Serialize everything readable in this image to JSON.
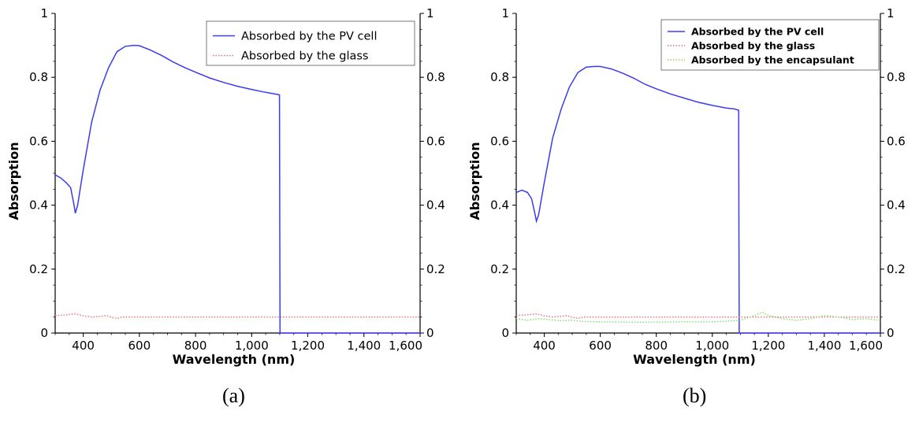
{
  "figure": {
    "captions": [
      "(a)",
      "(b)"
    ]
  },
  "chart_data": [
    {
      "type": "line",
      "panel": "(a)",
      "xlabel": "Wavelength (nm)",
      "ylabel": "Absorption",
      "xlim": [
        300,
        1600
      ],
      "ylim": [
        0,
        1
      ],
      "x_ticks": [
        400,
        600,
        800,
        1000,
        1200,
        1400,
        1600
      ],
      "x_tick_labels": [
        "400",
        "600",
        "800",
        "1,000",
        "1,200",
        "1,400",
        "1,600"
      ],
      "y_ticks": [
        0,
        0.2,
        0.4,
        0.6,
        0.8,
        1
      ],
      "y_tick_labels": [
        "0",
        "0.2",
        "0.4",
        "0.6",
        "0.8",
        "1"
      ],
      "right_axis": true,
      "grid": false,
      "legend_position": "top-right",
      "series": [
        {
          "name": "Absorbed by the PV cell",
          "color": "#3b3bf0",
          "style": "solid",
          "x": [
            300,
            320,
            340,
            355,
            365,
            372,
            380,
            400,
            430,
            460,
            490,
            520,
            550,
            580,
            600,
            640,
            680,
            720,
            760,
            800,
            850,
            900,
            950,
            1000,
            1050,
            1095,
            1099,
            1100,
            1101,
            1120,
            1200,
            1400,
            1600
          ],
          "y": [
            0.495,
            0.485,
            0.47,
            0.455,
            0.41,
            0.375,
            0.4,
            0.51,
            0.66,
            0.76,
            0.83,
            0.88,
            0.897,
            0.9,
            0.899,
            0.885,
            0.868,
            0.848,
            0.831,
            0.816,
            0.798,
            0.784,
            0.772,
            0.762,
            0.753,
            0.746,
            0.745,
            0.4,
            0.0,
            0.0,
            0.0,
            0.0,
            0.0
          ]
        },
        {
          "name": "Absorbed by the glass",
          "color": "#e0707a",
          "style": "dotted",
          "x": [
            300,
            340,
            370,
            400,
            430,
            460,
            480,
            500,
            520,
            540,
            600,
            700,
            800,
            900,
            1000,
            1100,
            1200,
            1400,
            1600
          ],
          "y": [
            0.055,
            0.057,
            0.06,
            0.054,
            0.05,
            0.052,
            0.055,
            0.049,
            0.046,
            0.05,
            0.05,
            0.05,
            0.05,
            0.05,
            0.05,
            0.05,
            0.05,
            0.05,
            0.05
          ]
        }
      ]
    },
    {
      "type": "line",
      "panel": "(b)",
      "xlabel": "Wavelength (nm)",
      "ylabel": "Absorption",
      "xlim": [
        300,
        1600
      ],
      "ylim": [
        0,
        1
      ],
      "x_ticks": [
        400,
        600,
        800,
        1000,
        1200,
        1400,
        1600
      ],
      "x_tick_labels": [
        "400",
        "600",
        "800",
        "1,000",
        "1,200",
        "1,400",
        "1,600"
      ],
      "y_ticks": [
        0,
        0.2,
        0.4,
        0.6,
        0.8,
        1
      ],
      "y_tick_labels": [
        "0",
        "0.2",
        "0.4",
        "0.6",
        "0.8",
        "1"
      ],
      "right_axis": true,
      "grid": false,
      "legend_position": "top-right",
      "series": [
        {
          "name": "Absorbed by the PV cell",
          "color": "#3b3bf0",
          "style": "solid",
          "x": [
            300,
            320,
            340,
            355,
            365,
            372,
            380,
            400,
            430,
            460,
            490,
            520,
            550,
            580,
            600,
            640,
            680,
            720,
            760,
            800,
            850,
            900,
            950,
            1000,
            1050,
            1080,
            1094,
            1095,
            1096,
            1120,
            1200,
            1400,
            1600
          ],
          "y": [
            0.44,
            0.447,
            0.44,
            0.42,
            0.38,
            0.35,
            0.37,
            0.47,
            0.61,
            0.7,
            0.77,
            0.815,
            0.832,
            0.834,
            0.834,
            0.826,
            0.813,
            0.797,
            0.778,
            0.764,
            0.748,
            0.735,
            0.722,
            0.712,
            0.704,
            0.701,
            0.697,
            0.35,
            0.0,
            0.0,
            0.0,
            0.0,
            0.0
          ]
        },
        {
          "name": "Absorbed by the glass",
          "color": "#e0707a",
          "style": "dotted",
          "x": [
            300,
            340,
            370,
            400,
            430,
            460,
            480,
            500,
            520,
            540,
            600,
            700,
            800,
            900,
            1000,
            1100,
            1200,
            1400,
            1600
          ],
          "y": [
            0.055,
            0.057,
            0.06,
            0.054,
            0.05,
            0.052,
            0.055,
            0.049,
            0.046,
            0.05,
            0.05,
            0.05,
            0.05,
            0.05,
            0.05,
            0.05,
            0.05,
            0.05,
            0.05
          ]
        },
        {
          "name": "Absorbed by the encapsulant",
          "color": "#8fd36a",
          "style": "dotted",
          "x": [
            300,
            340,
            380,
            420,
            460,
            500,
            540,
            600,
            700,
            800,
            900,
            1000,
            1050,
            1100,
            1150,
            1180,
            1200,
            1250,
            1300,
            1350,
            1400,
            1450,
            1500,
            1550,
            1600
          ],
          "y": [
            0.045,
            0.04,
            0.045,
            0.042,
            0.038,
            0.04,
            0.036,
            0.035,
            0.034,
            0.034,
            0.035,
            0.035,
            0.037,
            0.04,
            0.055,
            0.065,
            0.055,
            0.045,
            0.04,
            0.045,
            0.055,
            0.05,
            0.042,
            0.045,
            0.04
          ]
        }
      ]
    }
  ]
}
